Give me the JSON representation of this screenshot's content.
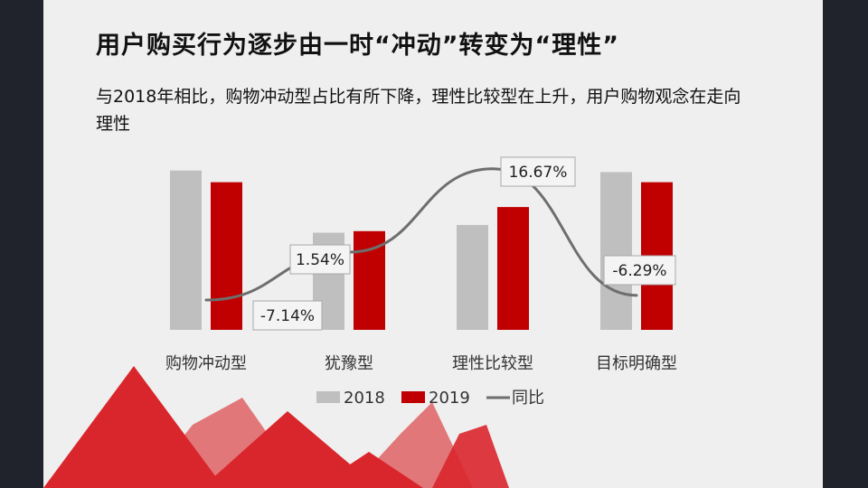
{
  "slide": {
    "title": "用户购买行为逐步由一时“冲动”转变为“理性”",
    "subtitle": "与2018年相比，购物冲动型占比有所下降，理性比较型在上升，用户购物观念在走向理性"
  },
  "colors": {
    "frame": "#20222c",
    "background": "#efefef",
    "series_2018": "#bfbfbf",
    "series_2019": "#c00000",
    "line": "#6e6e6e",
    "mountain_red": "#d9262c",
    "mountain_light": "#e27779"
  },
  "chart_data": {
    "type": "bar",
    "categories": [
      "购物冲动型",
      "犹豫型",
      "理性比较型",
      "目标明确型"
    ],
    "series": [
      {
        "name": "2018",
        "type": "bar",
        "values": [
          20.5,
          12.5,
          13.5,
          20.3
        ]
      },
      {
        "name": "2019",
        "type": "bar",
        "values": [
          19.0,
          12.7,
          15.8,
          19.0
        ]
      },
      {
        "name": "同比",
        "type": "line",
        "values": [
          -7.14,
          1.54,
          16.67,
          -6.29
        ],
        "labels": [
          "-7.14%",
          "1.54%",
          "16.67%",
          "-6.29%"
        ]
      }
    ],
    "legend": [
      "2018",
      "2019",
      "同比"
    ],
    "legend_position": "bottom",
    "grid": false,
    "value_axis_visible": false
  }
}
